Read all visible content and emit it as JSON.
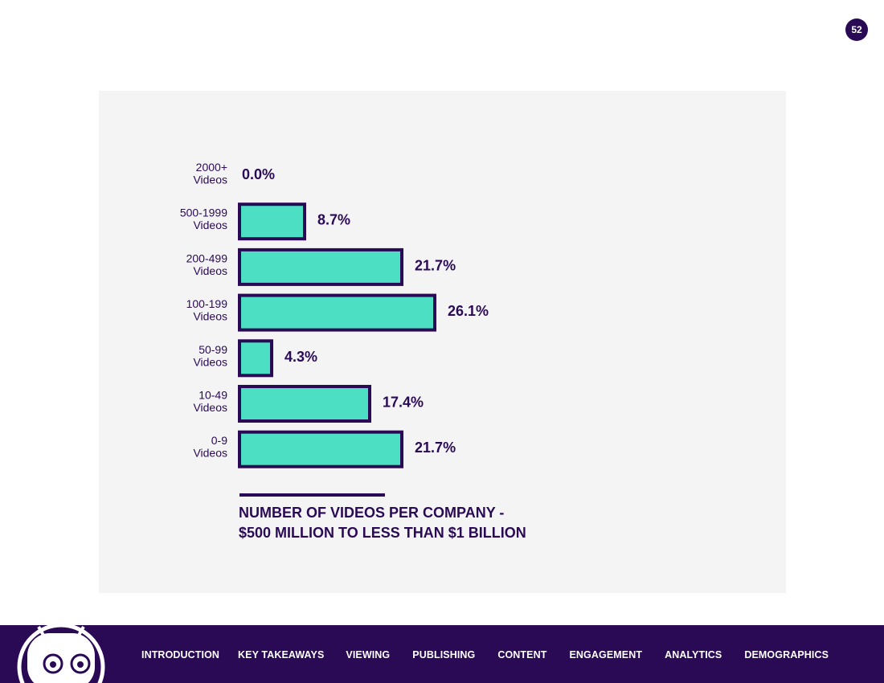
{
  "page_number": "52",
  "chart_data": {
    "type": "bar",
    "orientation": "horizontal",
    "categories": [
      [
        "2000+",
        "Videos"
      ],
      [
        "500-1999",
        "Videos"
      ],
      [
        "200-499",
        "Videos"
      ],
      [
        "100-199",
        "Videos"
      ],
      [
        "50-99",
        "Videos"
      ],
      [
        "10-49",
        "Videos"
      ],
      [
        "0-9",
        "Videos"
      ]
    ],
    "values": [
      0.0,
      8.7,
      21.7,
      26.1,
      4.3,
      17.4,
      21.7
    ],
    "value_labels": [
      "0.0%",
      "8.7%",
      "21.7%",
      "26.1%",
      "4.3%",
      "17.4%",
      "21.7%"
    ],
    "title_lines": [
      "NUMBER OF VIDEOS PER COMPANY -",
      "$500 MILLION TO LESS THAN $1 BILLION"
    ],
    "xlim": [
      0,
      26.1
    ],
    "colors": {
      "bar_fill": "#4cdfc4",
      "bar_stroke": "#2a0a55",
      "text": "#2a0a55"
    }
  },
  "footer": {
    "nav": [
      "INTRODUCTION",
      "KEY TAKEAWAYS",
      "VIEWING",
      "PUBLISHING",
      "CONTENT",
      "ENGAGEMENT",
      "ANALYTICS",
      "DEMOGRAPHICS"
    ]
  }
}
